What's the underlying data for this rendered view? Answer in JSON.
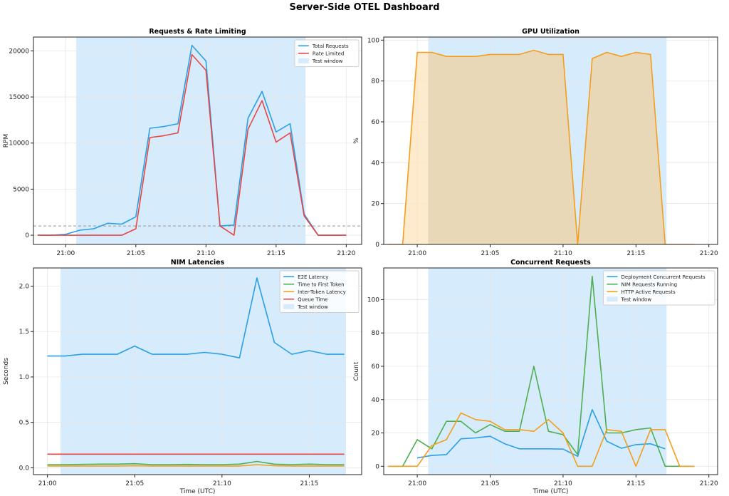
{
  "dashboard": {
    "title": "Server-Side OTEL Dashboard"
  },
  "colors": {
    "blue": "#2a9fe5",
    "red": "#e84545",
    "green": "#4caf50",
    "orange": "#f59e1a",
    "window": "#d6ebfb",
    "gpuFill": "#fde3bc",
    "grid": "#e6e6e6"
  },
  "chart_data": [
    {
      "type": "line",
      "title": "Requests & Rate Limiting",
      "ylabel": "RPM",
      "xlabel": "",
      "xlim": [
        -2.3,
        21.1
      ],
      "ylim": [
        -1000,
        21500
      ],
      "xticks": [
        {
          "v": 0,
          "label": "21:00"
        },
        {
          "v": 5,
          "label": "21:05"
        },
        {
          "v": 10,
          "label": "21:10"
        },
        {
          "v": 15,
          "label": "21:15"
        },
        {
          "v": 20,
          "label": "21:20"
        }
      ],
      "yticks": [
        {
          "v": 0,
          "label": "0"
        },
        {
          "v": 5000,
          "label": "5000"
        },
        {
          "v": 10000,
          "label": "10000"
        },
        {
          "v": 15000,
          "label": "15000"
        },
        {
          "v": 20000,
          "label": "20000"
        }
      ],
      "window": [
        0.75,
        17.1
      ],
      "hline": 1000,
      "legend_position": "top-right",
      "legend": [
        {
          "label": "Total Requests",
          "kind": "line",
          "color": "#2a9fe5"
        },
        {
          "label": "Rate Limited",
          "kind": "line",
          "color": "#e84545"
        },
        {
          "label": "Test window",
          "kind": "patch",
          "color": "#d6ebfb"
        }
      ],
      "series": [
        {
          "name": "Total Requests",
          "color": "#2a9fe5",
          "x": [
            -2,
            -1,
            0,
            1,
            2,
            3,
            4,
            5,
            6,
            7,
            8,
            9,
            10,
            11,
            12,
            13,
            14,
            15,
            16,
            17,
            18,
            19,
            20
          ],
          "y": [
            0,
            0,
            100,
            550,
            700,
            1300,
            1200,
            2000,
            11600,
            11800,
            12100,
            20600,
            18900,
            1000,
            1100,
            12700,
            15600,
            11200,
            12100,
            2300,
            0,
            0,
            0
          ]
        },
        {
          "name": "Rate Limited",
          "color": "#e84545",
          "x": [
            -2,
            -1,
            0,
            1,
            2,
            3,
            4,
            5,
            6,
            7,
            8,
            9,
            10,
            11,
            12,
            13,
            14,
            15,
            16,
            17,
            18,
            19,
            20
          ],
          "y": [
            0,
            0,
            0,
            0,
            0,
            0,
            0,
            700,
            10600,
            10800,
            11100,
            19600,
            17900,
            1000,
            0,
            11500,
            14600,
            10100,
            11100,
            2100,
            0,
            0,
            0
          ]
        }
      ]
    },
    {
      "type": "area",
      "title": "GPU Utilization",
      "ylabel": "%",
      "xlabel": "",
      "xlim": [
        -2.3,
        20.6
      ],
      "ylim": [
        0,
        101.5
      ],
      "xticks": [
        {
          "v": 0,
          "label": "21:00"
        },
        {
          "v": 5,
          "label": "21:05"
        },
        {
          "v": 10,
          "label": "21:10"
        },
        {
          "v": 15,
          "label": "21:15"
        },
        {
          "v": 20,
          "label": "21:20"
        }
      ],
      "yticks": [
        {
          "v": 0,
          "label": "0"
        },
        {
          "v": 20,
          "label": "20"
        },
        {
          "v": 40,
          "label": "40"
        },
        {
          "v": 60,
          "label": "60"
        },
        {
          "v": 80,
          "label": "80"
        },
        {
          "v": 100,
          "label": "100"
        }
      ],
      "window": [
        0.75,
        17.1
      ],
      "legend": [],
      "series": [
        {
          "name": "",
          "color": "#f59e1a",
          "x": [
            -2,
            -1,
            0,
            1,
            2,
            3,
            4,
            5,
            6,
            7,
            8,
            9,
            10,
            11,
            12,
            13,
            14,
            15,
            16,
            17,
            18,
            19
          ],
          "y": [
            0,
            0,
            94,
            94,
            92,
            92,
            92,
            93,
            93,
            93,
            95,
            93,
            93,
            0,
            91,
            94,
            92,
            94,
            93,
            0,
            0,
            0
          ]
        }
      ]
    },
    {
      "type": "line",
      "title": "NIM Latencies",
      "ylabel": "Seconds",
      "xlabel": "Time (UTC)",
      "xlim": [
        -0.8,
        18.0
      ],
      "ylim": [
        -0.075,
        2.2
      ],
      "xticks": [
        {
          "v": 0,
          "label": "21:00"
        },
        {
          "v": 5,
          "label": "21:05"
        },
        {
          "v": 10,
          "label": "21:10"
        },
        {
          "v": 15,
          "label": "21:15"
        }
      ],
      "yticks": [
        {
          "v": 0,
          "label": "0.0"
        },
        {
          "v": 0.5,
          "label": "0.5"
        },
        {
          "v": 1.0,
          "label": "1.0"
        },
        {
          "v": 1.5,
          "label": "1.5"
        },
        {
          "v": 2.0,
          "label": "2.0"
        }
      ],
      "window": [
        0.75,
        17.1
      ],
      "legend_position": "top-right",
      "legend": [
        {
          "label": "E2E Latency",
          "kind": "line",
          "color": "#2a9fe5"
        },
        {
          "label": "Time to First Token",
          "kind": "line",
          "color": "#4caf50"
        },
        {
          "label": "Inter-Token Latency",
          "kind": "line",
          "color": "#f59e1a"
        },
        {
          "label": "Queue Time",
          "kind": "line",
          "color": "#e84545"
        },
        {
          "label": "Test window",
          "kind": "patch",
          "color": "#d6ebfb"
        }
      ],
      "series": [
        {
          "name": "E2E Latency",
          "color": "#2a9fe5",
          "x": [
            0,
            1,
            2,
            3,
            4,
            5,
            6,
            7,
            8,
            9,
            10,
            11,
            12,
            13,
            14,
            15,
            16,
            17
          ],
          "y": [
            1.23,
            1.23,
            1.25,
            1.25,
            1.25,
            1.34,
            1.25,
            1.25,
            1.25,
            1.27,
            1.25,
            1.21,
            2.09,
            1.38,
            1.25,
            1.29,
            1.25,
            1.25
          ]
        },
        {
          "name": "Time to First Token",
          "color": "#4caf50",
          "x": [
            0,
            1,
            2,
            3,
            4,
            5,
            6,
            7,
            8,
            9,
            10,
            11,
            12,
            13,
            14,
            15,
            16,
            17
          ],
          "y": [
            0.035,
            0.035,
            0.037,
            0.04,
            0.04,
            0.045,
            0.035,
            0.035,
            0.037,
            0.035,
            0.035,
            0.04,
            0.07,
            0.04,
            0.035,
            0.04,
            0.035,
            0.035
          ]
        },
        {
          "name": "Inter-Token Latency",
          "color": "#f59e1a",
          "x": [
            0,
            1,
            2,
            3,
            4,
            5,
            6,
            7,
            8,
            9,
            10,
            11,
            12,
            13,
            14,
            15,
            16,
            17
          ],
          "y": [
            0.02,
            0.02,
            0.02,
            0.02,
            0.02,
            0.022,
            0.02,
            0.02,
            0.02,
            0.02,
            0.02,
            0.02,
            0.035,
            0.022,
            0.02,
            0.02,
            0.02,
            0.02
          ]
        },
        {
          "name": "Queue Time",
          "color": "#e84545",
          "x": [
            0,
            1,
            2,
            3,
            4,
            5,
            6,
            7,
            8,
            9,
            10,
            11,
            12,
            13,
            14,
            15,
            16,
            17
          ],
          "y": [
            0.15,
            0.15,
            0.15,
            0.15,
            0.15,
            0.15,
            0.15,
            0.15,
            0.15,
            0.15,
            0.15,
            0.15,
            0.15,
            0.15,
            0.15,
            0.15,
            0.15,
            0.15
          ]
        }
      ]
    },
    {
      "type": "line",
      "title": "Concurrent Requests",
      "ylabel": "Count",
      "xlabel": "Time (UTC)",
      "xlim": [
        -2.3,
        20.6
      ],
      "ylim": [
        -5,
        119
      ],
      "xticks": [
        {
          "v": 0,
          "label": "21:00"
        },
        {
          "v": 5,
          "label": "21:05"
        },
        {
          "v": 10,
          "label": "21:10"
        },
        {
          "v": 15,
          "label": "21:15"
        },
        {
          "v": 20,
          "label": "21:20"
        }
      ],
      "yticks": [
        {
          "v": 0,
          "label": "0"
        },
        {
          "v": 20,
          "label": "20"
        },
        {
          "v": 40,
          "label": "40"
        },
        {
          "v": 60,
          "label": "60"
        },
        {
          "v": 80,
          "label": "80"
        },
        {
          "v": 100,
          "label": "100"
        }
      ],
      "window": [
        0.75,
        17.1
      ],
      "legend_position": "top-right",
      "legend": [
        {
          "label": "Deployment Concurrent Requests",
          "kind": "line",
          "color": "#2a9fe5"
        },
        {
          "label": "NIM Requests Running",
          "kind": "line",
          "color": "#4caf50"
        },
        {
          "label": "HTTP Active Requests",
          "kind": "line",
          "color": "#f59e1a"
        },
        {
          "label": "Test window",
          "kind": "patch",
          "color": "#d6ebfb"
        }
      ],
      "series": [
        {
          "name": "Deployment Concurrent Requests",
          "color": "#2a9fe5",
          "x": [
            0,
            1,
            2,
            3,
            4,
            5,
            6,
            7,
            8,
            9,
            10,
            11,
            12,
            13,
            14,
            15,
            16,
            17
          ],
          "y": [
            5,
            6.5,
            7,
            16.5,
            17,
            18,
            13.5,
            10.5,
            10.5,
            10.5,
            10.3,
            6,
            34,
            15,
            10.8,
            13,
            13.5,
            10.5
          ]
        },
        {
          "name": "NIM Requests Running",
          "color": "#4caf50",
          "x": [
            -2,
            -1,
            0,
            1,
            2,
            3,
            4,
            5,
            6,
            7,
            8,
            9,
            10,
            11,
            12,
            13,
            14,
            15,
            16,
            17,
            18,
            19
          ],
          "y": [
            0,
            0,
            16,
            10.5,
            27,
            27,
            20,
            25,
            21,
            21,
            60,
            21,
            19,
            7,
            114,
            20,
            20,
            22,
            23,
            0,
            0,
            0
          ]
        },
        {
          "name": "HTTP Active Requests",
          "color": "#f59e1a",
          "x": [
            -2,
            -1,
            0,
            1,
            2,
            3,
            4,
            5,
            6,
            7,
            8,
            9,
            10,
            11,
            12,
            13,
            14,
            15,
            16,
            17,
            18,
            19
          ],
          "y": [
            0,
            0,
            0,
            12.5,
            16,
            32,
            28,
            27,
            22,
            22,
            21,
            28,
            20,
            0,
            0,
            22,
            21,
            0,
            22,
            22,
            0,
            0
          ]
        }
      ]
    }
  ]
}
